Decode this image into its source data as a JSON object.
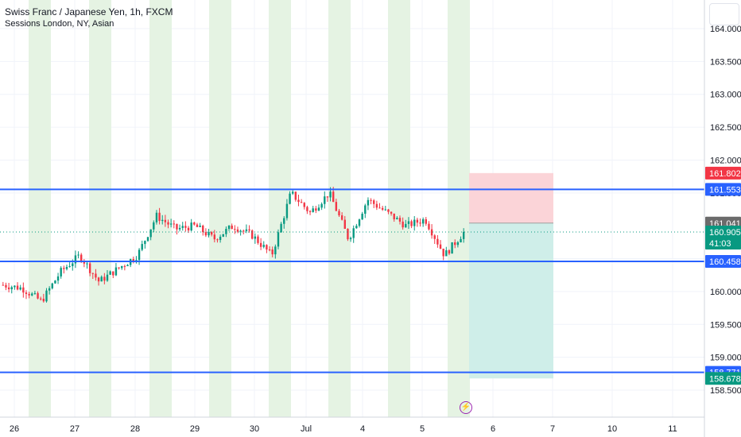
{
  "legend": {
    "symbol": "Swiss Franc / Japanese Yen, 1h, FXCM",
    "indicator": "Sessions London, NY, Asian"
  },
  "colors": {
    "session_band": "#e5f3e3",
    "level_line": "#2962ff",
    "candle_up": "#089981",
    "candle_down": "#f23645",
    "stop_zone": "#fbd4d8",
    "target_zone": "#cfeee9",
    "last_price_label": "#089981",
    "stop_label": "#f23645",
    "level_label": "#2962ff",
    "entry_label": "#6b6b6b"
  },
  "icons": [
    "menu-icon",
    "lightning-event-icon"
  ],
  "chart_data": {
    "type": "candlestick",
    "y_axis_ticks": [
      164.0,
      163.5,
      163.0,
      162.5,
      162.0,
      161.5,
      160.5,
      160.0,
      159.5,
      159.0,
      158.5
    ],
    "ylim": [
      158.5,
      164.15
    ],
    "x_axis_ticks": [
      "26",
      "27",
      "28",
      "29",
      "30",
      "Jul",
      "4",
      "5",
      "6",
      "7",
      "10",
      "11"
    ],
    "horizontal_levels": [
      161.553,
      160.458,
      158.771
    ],
    "position": {
      "type": "short",
      "entry": 161.041,
      "stop": 161.802,
      "target": 158.678
    },
    "current_price": 160.905,
    "countdown": "41:03",
    "price_labels": [
      {
        "value": 161.802,
        "text": "161.802",
        "kind": "stop"
      },
      {
        "value": 161.553,
        "text": "161.553",
        "kind": "level"
      },
      {
        "value": 161.041,
        "text": "161.041",
        "kind": "entry"
      },
      {
        "value": 160.905,
        "text": "160.905",
        "kind": "last"
      },
      {
        "value": 160.458,
        "text": "160.458",
        "kind": "level"
      },
      {
        "value": 158.771,
        "text": "158.771",
        "kind": "level"
      },
      {
        "value": 158.678,
        "text": "158.678",
        "kind": "last"
      }
    ],
    "ohlc_keypoints": [
      {
        "d": "26",
        "p": 160.1
      },
      {
        "d": "26.3",
        "p": 160.05
      },
      {
        "d": "26.5",
        "p": 159.85
      },
      {
        "d": "26.7",
        "p": 160.3
      },
      {
        "d": "26.8",
        "p": 160.55
      },
      {
        "d": "27",
        "p": 160.15
      },
      {
        "d": "27.3",
        "p": 160.35
      },
      {
        "d": "27.5",
        "p": 160.55
      },
      {
        "d": "27.8",
        "p": 161.15
      },
      {
        "d": "28",
        "p": 160.95
      },
      {
        "d": "28.5",
        "p": 161.0
      },
      {
        "d": "29",
        "p": 160.8
      },
      {
        "d": "29.5",
        "p": 161.0
      },
      {
        "d": "30",
        "p": 160.85
      },
      {
        "d": "30.4",
        "p": 160.55
      },
      {
        "d": "30.6",
        "p": 161.5
      },
      {
        "d": "Jul",
        "p": 161.2
      },
      {
        "d": "Jul.3",
        "p": 161.5
      },
      {
        "d": "Jul.6",
        "p": 160.8
      },
      {
        "d": "4",
        "p": 161.4
      },
      {
        "d": "4.5",
        "p": 161.2
      },
      {
        "d": "5",
        "p": 161.0
      },
      {
        "d": "5.2",
        "p": 161.1
      },
      {
        "d": "5.4",
        "p": 160.55
      },
      {
        "d": "5.5",
        "p": 160.9
      }
    ]
  }
}
